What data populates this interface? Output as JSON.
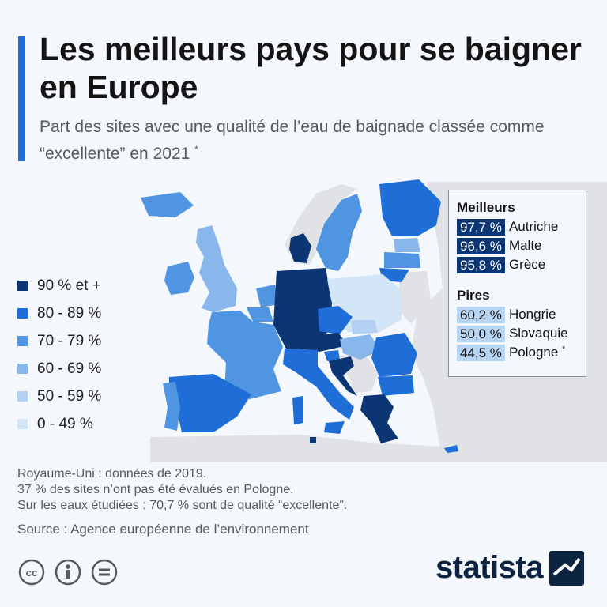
{
  "title": "Les meilleurs pays pour se baigner en Europe",
  "subtitle": "Part des sites avec une qualité de l’eau de baignade classée comme “excellente” en 2021",
  "subtitle_mark": "*",
  "legend": [
    {
      "label": "90 % et +",
      "color": "#0c3573"
    },
    {
      "label": "80 - 89 %",
      "color": "#1f6ed8"
    },
    {
      "label": "70 - 79 %",
      "color": "#5095e2"
    },
    {
      "label": "60 - 69 %",
      "color": "#89b7ec"
    },
    {
      "label": "50 - 59 %",
      "color": "#b3d0f2"
    },
    {
      "label": "0 - 49 %",
      "color": "#d3e6f8"
    }
  ],
  "colors": {
    "no_data": "#e0e2e5",
    "sea": "#f4f7fb",
    "accent": "#1f6ed8"
  },
  "best": {
    "heading": "Meilleurs",
    "items": [
      {
        "value": "97,7 %",
        "country": "Autriche"
      },
      {
        "value": "96,6 %",
        "country": "Malte"
      },
      {
        "value": "95,8 %",
        "country": "Grèce"
      }
    ]
  },
  "worst": {
    "heading": "Pires",
    "items": [
      {
        "value": "60,2 %",
        "country": "Hongrie",
        "mark": ""
      },
      {
        "value": "50,0 %",
        "country": "Slovaquie",
        "mark": ""
      },
      {
        "value": "44,5 %",
        "country": "Pologne",
        "mark": "*"
      }
    ]
  },
  "notes": [
    "Royaume-Uni : données de 2019.",
    "37 % des sites n’ont pas été évalués en Pologne.",
    "Sur les eaux étudiées : 70,7 % sont de qualité “excellente”."
  ],
  "source": "Source : Agence européenne de l’environnement",
  "license_icons": [
    "cc-icon",
    "by-icon",
    "nd-icon"
  ],
  "license_labels": [
    "cc",
    "i",
    "="
  ],
  "brand": "statista"
}
